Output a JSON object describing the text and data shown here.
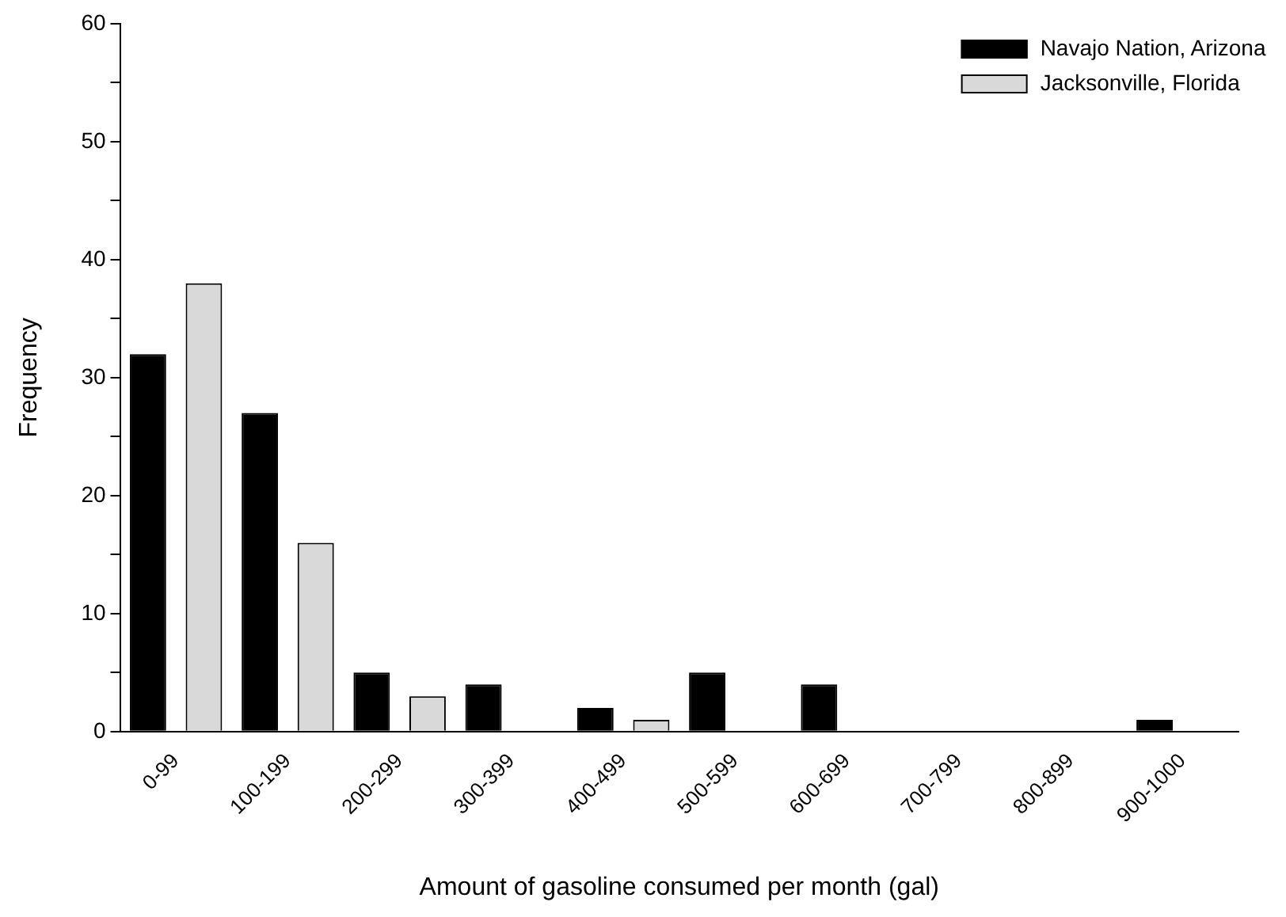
{
  "chart_data": {
    "type": "bar",
    "xlabel": "Amount of gasoline consumed per month (gal)",
    "ylabel": "Frequency",
    "categories": [
      "0-99",
      "100-199",
      "200-299",
      "300-399",
      "400-499",
      "500-599",
      "600-699",
      "700-799",
      "800-899",
      "900-1000"
    ],
    "series": [
      {
        "name": "Navajo Nation, Arizona",
        "color": "#000000",
        "values": [
          32,
          27,
          5,
          4,
          2,
          5,
          4,
          0,
          0,
          1
        ]
      },
      {
        "name": "Jacksonville, Florida",
        "color": "#d9d9d9",
        "values": [
          38,
          16,
          3,
          0,
          1,
          0,
          0,
          0,
          0,
          0
        ]
      }
    ],
    "ylim": [
      0,
      60
    ],
    "yticks": [
      0,
      {
        "value": 5,
        "label": null
      },
      10,
      {
        "value": 15,
        "label": null
      },
      20,
      {
        "value": 25,
        "label": null
      },
      30,
      {
        "value": 35,
        "label": null
      },
      40,
      {
        "value": 45,
        "label": null
      },
      50,
      {
        "value": 55,
        "label": null
      },
      60
    ],
    "grid": false,
    "legend": "top right"
  }
}
